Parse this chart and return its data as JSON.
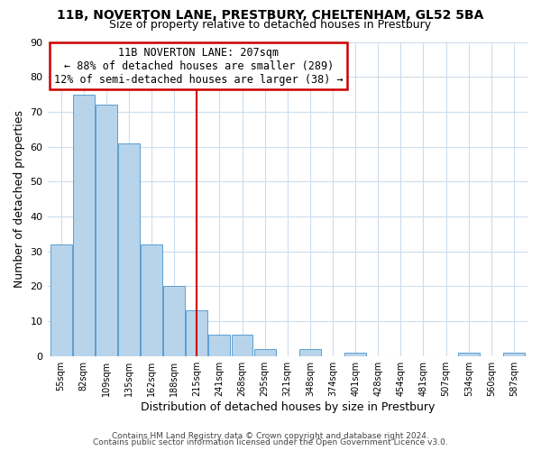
{
  "title": "11B, NOVERTON LANE, PRESTBURY, CHELTENHAM, GL52 5BA",
  "subtitle": "Size of property relative to detached houses in Prestbury",
  "xlabel": "Distribution of detached houses by size in Prestbury",
  "ylabel": "Number of detached properties",
  "categories": [
    "55sqm",
    "82sqm",
    "109sqm",
    "135sqm",
    "162sqm",
    "188sqm",
    "215sqm",
    "241sqm",
    "268sqm",
    "295sqm",
    "321sqm",
    "348sqm",
    "374sqm",
    "401sqm",
    "428sqm",
    "454sqm",
    "481sqm",
    "507sqm",
    "534sqm",
    "560sqm",
    "587sqm"
  ],
  "values": [
    32,
    75,
    72,
    61,
    32,
    20,
    13,
    6,
    6,
    2,
    0,
    2,
    0,
    1,
    0,
    0,
    0,
    0,
    1,
    0,
    1
  ],
  "bar_color": "#b8d4ea",
  "bar_edge_color": "#5a9fd4",
  "highlight_index": 6,
  "annotation_title": "11B NOVERTON LANE: 207sqm",
  "annotation_line1": "← 88% of detached houses are smaller (289)",
  "annotation_line2": "12% of semi-detached houses are larger (38) →",
  "annotation_box_color": "#ffffff",
  "annotation_box_edge": "#cc0000",
  "vline_color": "#cc0000",
  "ylim": [
    0,
    90
  ],
  "yticks": [
    0,
    10,
    20,
    30,
    40,
    50,
    60,
    70,
    80,
    90
  ],
  "footer1": "Contains HM Land Registry data © Crown copyright and database right 2024.",
  "footer2": "Contains public sector information licensed under the Open Government Licence v3.0.",
  "bg_color": "#ffffff",
  "grid_color": "#ccdded"
}
